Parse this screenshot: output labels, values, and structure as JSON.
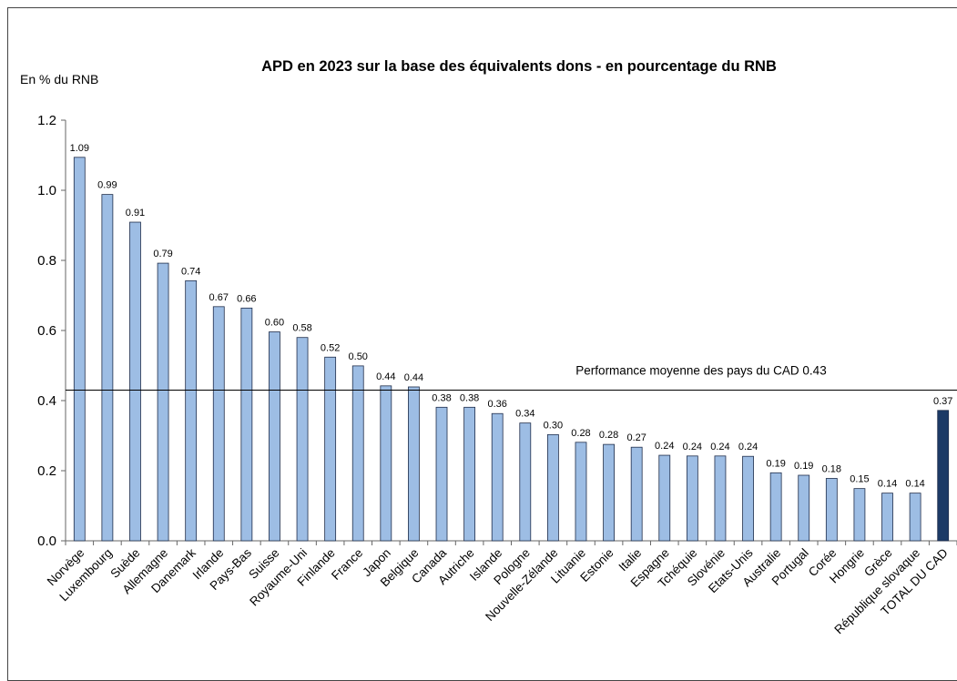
{
  "chart_data": {
    "type": "bar",
    "title": "APD en 2023 sur la base des équivalents dons - en pourcentage du RNB",
    "ylabel": "En % du RNB",
    "xlabel": "",
    "ylim": [
      0,
      1.2
    ],
    "yticks": [
      "0.0",
      "0.2",
      "0.4",
      "0.6",
      "0.8",
      "1.0",
      "1.2"
    ],
    "grid": false,
    "categories": [
      "Norvège",
      "Luxembourg",
      "Suède",
      "Allemagne",
      "Danemark",
      "Irlande",
      "Pays-Bas",
      "Suisse",
      "Royaume-Uni",
      "Finlande",
      "France",
      "Japon",
      "Belgique",
      "Canada",
      "Autriche",
      "Islande",
      "Pologne",
      "Nouvelle-Zélande",
      "Lituanie",
      "Estonie",
      "Italie",
      "Espagne",
      "Tchéquie",
      "Slovénie",
      "Etats-Unis",
      "Australie",
      "Portugal",
      "Corée",
      "Hongrie",
      "Grèce",
      "République slovaque",
      "TOTAL DU CAD"
    ],
    "values": [
      1.094,
      0.988,
      0.909,
      0.792,
      0.742,
      0.668,
      0.664,
      0.596,
      0.58,
      0.524,
      0.499,
      0.442,
      0.439,
      0.381,
      0.381,
      0.363,
      0.336,
      0.303,
      0.281,
      0.275,
      0.267,
      0.244,
      0.242,
      0.242,
      0.241,
      0.194,
      0.187,
      0.178,
      0.149,
      0.136,
      0.136,
      0.372
    ],
    "data_labels": [
      "1.09",
      "0.99",
      "0.91",
      "0.79",
      "0.74",
      "0.67",
      "0.66",
      "0.60",
      "0.58",
      "0.52",
      "0.50",
      "0.44",
      "0.44",
      "0.38",
      "0.38",
      "0.36",
      "0.34",
      "0.30",
      "0.28",
      "0.28",
      "0.27",
      "0.24",
      "0.24",
      "0.24",
      "0.24",
      "0.19",
      "0.19",
      "0.18",
      "0.15",
      "0.14",
      "0.14",
      "0.37"
    ],
    "highlight_category": "TOTAL DU CAD",
    "colors": {
      "bar": "#9dbde4",
      "bar_stroke": "#1f2d4a",
      "highlight": "#1c3a66"
    },
    "reference_line": {
      "value": 0.43,
      "label": "Performance moyenne des pays du CAD 0.43"
    }
  }
}
